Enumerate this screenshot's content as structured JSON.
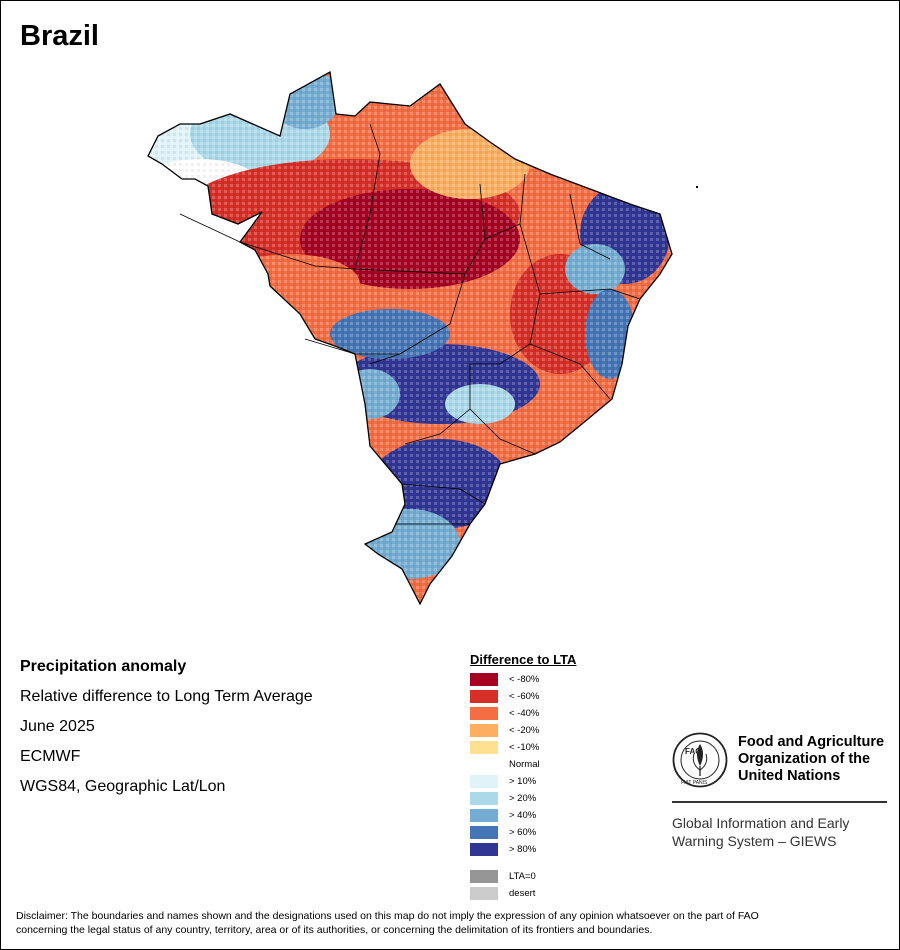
{
  "map": {
    "title": "Brazil",
    "colors": {
      "lt_m80": "#a50022",
      "lt_m60": "#d62f27",
      "lt_m40": "#f46d43",
      "lt_m20": "#fdae61",
      "lt_m10": "#fee090",
      "normal": "#ffffff",
      "gt_10": "#e0f3f8",
      "gt_20": "#abd9e9",
      "gt_40": "#74add1",
      "gt_60": "#4575b4",
      "gt_80": "#313695",
      "lta0": "#969696",
      "desert": "#cccccc"
    }
  },
  "info": {
    "heading": "Precipitation anomaly",
    "subtitle": "Relative difference to Long Term Average",
    "period": "June 2025",
    "source": "ECMWF",
    "projection": "WGS84, Geographic Lat/Lon"
  },
  "legend": {
    "title": "Difference to LTA",
    "items": [
      {
        "label": "< -80%",
        "color": "#a50022"
      },
      {
        "label": "< -60%",
        "color": "#d62f27"
      },
      {
        "label": "< -40%",
        "color": "#f46d43"
      },
      {
        "label": "< -20%",
        "color": "#fdae61"
      },
      {
        "label": "< -10%",
        "color": "#fee090"
      },
      {
        "label": "Normal",
        "color": "#ffffff"
      },
      {
        "label": "> 10%",
        "color": "#e0f3f8"
      },
      {
        "label": "> 20%",
        "color": "#abd9e9"
      },
      {
        "label": "> 40%",
        "color": "#74add1"
      },
      {
        "label": "> 60%",
        "color": "#4575b4"
      },
      {
        "label": "> 80%",
        "color": "#313695"
      }
    ],
    "extra": [
      {
        "label": "LTA=0",
        "color": "#969696"
      },
      {
        "label": "desert",
        "color": "#cccccc"
      }
    ]
  },
  "logo": {
    "line1": "Food and Agriculture",
    "line2": "Organization of the",
    "line3": "United Nations",
    "giews1": "Global Information and Early",
    "giews2": "Warning System – GIEWS",
    "emblem_text": "FAO",
    "emblem_motto": "FIAT PANIS"
  },
  "disclaimer": {
    "line1": "Disclaimer: The boundaries and names shown and the designations used on this map do not imply the expression of any opinion whatsoever on the part of FAO",
    "line2": "concerning the legal status of any country, territory, area or of its authorities, or concerning the delimitation of its frontiers and boundaries."
  }
}
